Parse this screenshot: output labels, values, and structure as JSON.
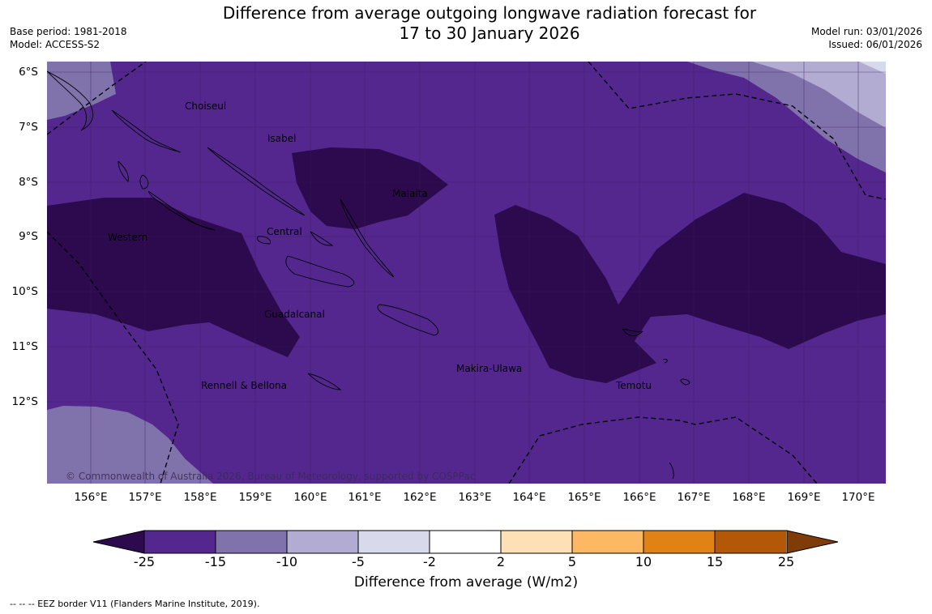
{
  "title": "Difference from average outgoing longwave radiation forecast for\n17 to 30 January 2026",
  "base_period": "Base period: 1981-2018",
  "model": "Model: ACCESS-S2",
  "model_run": "Model run: 03/01/2026",
  "issued": "Issued: 06/01/2026",
  "copyright": "© Commonwealth of Australia 2026, Bureau of Meteorology, supported by COSPPac",
  "footnote": "--  --  -- EEZ border V11 (Flanders Marine Institute, 2019).",
  "latitude_labels": [
    "6°S",
    "7°S",
    "8°S",
    "9°S",
    "10°S",
    "11°S",
    "12°S"
  ],
  "longitude_labels": [
    "156°E",
    "157°E",
    "158°E",
    "159°E",
    "160°E",
    "161°E",
    "162°E",
    "163°E",
    "164°E",
    "165°E",
    "166°E",
    "167°E",
    "168°E",
    "169°E",
    "170°E"
  ],
  "province_labels": [
    "Choiseul",
    "Isabel",
    "Malaita",
    "Western",
    "Central",
    "Guadalcanal",
    "Makira-Ulawa",
    "Temotu",
    "Rennell & Bellona"
  ],
  "colorbar": {
    "title": "Difference from average (W/m2)",
    "ticks": [
      "-25",
      "-15",
      "-10",
      "-5",
      "-2",
      "2",
      "5",
      "10",
      "15",
      "25"
    ],
    "colors": [
      "#2d0a4e",
      "#54278f",
      "#8073ac",
      "#b2abd2",
      "#d8daeb",
      "#ffffff",
      "#fee0b6",
      "#fdb863",
      "#e08214",
      "#b35806",
      "#7f3b08"
    ]
  }
}
